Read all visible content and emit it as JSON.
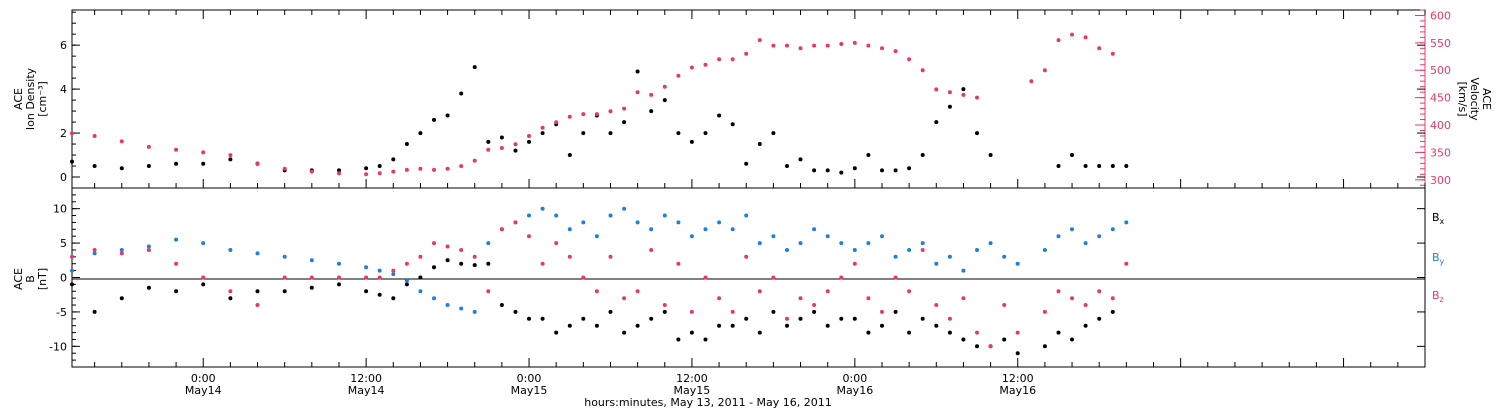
{
  "colors": {
    "black": "#000000",
    "blue": "#1f7fe0",
    "pink": "#e8386a"
  },
  "top": {
    "ylabel_lines": [
      "ACE",
      "Ion Density",
      "[cm⁻³]"
    ],
    "ylabel2_lines": [
      "ACE",
      "Velocity",
      "[km/s]"
    ],
    "left_ticks": [
      "0",
      "2",
      "4",
      "6"
    ],
    "right_ticks": [
      "300",
      "350",
      "400",
      "450",
      "500",
      "550",
      "600"
    ]
  },
  "bottom": {
    "ylabel_lines": [
      "ACE",
      "B",
      "[nT]"
    ],
    "left_ticks": [
      "-10",
      "-5",
      "0",
      "5",
      "10"
    ],
    "legend": [
      {
        "label": "Bx",
        "main": "B",
        "sub": "x",
        "color": "#000000"
      },
      {
        "label": "By",
        "main": "B",
        "sub": "y",
        "color": "#1f7fe0"
      },
      {
        "label": "Bz",
        "main": "B",
        "sub": "z",
        "color": "#e8386a"
      }
    ]
  },
  "xaxis": {
    "tick_times": [
      "0:00",
      "12:00",
      "0:00",
      "12:00",
      "0:00",
      "12:00"
    ],
    "tick_dates": [
      "May14",
      "May14",
      "May15",
      "May15",
      "May16",
      "May16"
    ],
    "title": "hours:minutes, May 13, 2011 - May 16, 2011"
  },
  "chart_data": [
    {
      "type": "scatter",
      "title": "",
      "xlabel": "hours:minutes, May 13, 2011 - May 16, 2011",
      "ylabel": "ACE Ion Density [cm⁻³]",
      "y2label": "ACE Velocity [km/s]",
      "xlim": [
        "2011-05-13 14:20",
        "2011-05-17 18:00"
      ],
      "ylim": [
        -0.5,
        7.6
      ],
      "y2lim": [
        285,
        610
      ],
      "grid": false,
      "x": [
        "2011-05-13 14:20",
        "2011-05-13 16:00",
        "2011-05-13 18:00",
        "2011-05-13 20:00",
        "2011-05-13 22:00",
        "2011-05-14 00:00",
        "2011-05-14 02:00",
        "2011-05-14 04:00",
        "2011-05-14 06:00",
        "2011-05-14 08:00",
        "2011-05-14 10:00",
        "2011-05-14 12:00",
        "2011-05-14 13:00",
        "2011-05-14 14:00",
        "2011-05-14 15:00",
        "2011-05-14 16:00",
        "2011-05-14 17:00",
        "2011-05-14 18:00",
        "2011-05-14 19:00",
        "2011-05-14 20:00",
        "2011-05-14 21:00",
        "2011-05-14 22:00",
        "2011-05-14 23:00",
        "2011-05-15 00:00",
        "2011-05-15 01:00",
        "2011-05-15 02:00",
        "2011-05-15 03:00",
        "2011-05-15 04:00",
        "2011-05-15 05:00",
        "2011-05-15 06:00",
        "2011-05-15 07:00",
        "2011-05-15 08:00",
        "2011-05-15 09:00",
        "2011-05-15 10:00",
        "2011-05-15 11:00",
        "2011-05-15 12:00",
        "2011-05-15 13:00",
        "2011-05-15 14:00",
        "2011-05-15 15:00",
        "2011-05-15 16:00",
        "2011-05-15 17:00",
        "2011-05-15 18:00",
        "2011-05-15 19:00",
        "2011-05-15 20:00",
        "2011-05-15 21:00",
        "2011-05-15 22:00",
        "2011-05-15 23:00",
        "2011-05-16 00:00",
        "2011-05-16 01:00",
        "2011-05-16 02:00",
        "2011-05-16 03:00",
        "2011-05-16 04:00",
        "2011-05-16 05:00",
        "2011-05-16 06:00",
        "2011-05-16 07:00",
        "2011-05-16 08:00",
        "2011-05-16 09:00",
        "2011-05-16 10:00",
        "2011-05-16 11:00",
        "2011-05-16 12:00",
        "2011-05-16 13:00",
        "2011-05-16 14:00",
        "2011-05-16 15:00",
        "2011-05-16 16:00",
        "2011-05-16 17:00",
        "2011-05-16 18:00",
        "2011-05-16 19:00",
        "2011-05-16 20:00",
        "2011-05-16 21:00",
        "2011-05-16 22:00"
      ],
      "series": [
        {
          "axis": "left",
          "color": "#000000",
          "values": [
            0.7,
            0.5,
            0.4,
            0.5,
            0.6,
            0.6,
            0.8,
            0.6,
            0.3,
            0.3,
            0.3,
            0.4,
            0.5,
            0.8,
            1.5,
            2.0,
            2.6,
            2.8,
            3.8,
            5.0,
            1.6,
            1.8,
            1.2,
            1.6,
            2.0,
            2.4,
            1.0,
            2.0,
            2.8,
            2.0,
            2.5,
            4.8,
            3.0,
            3.5,
            2.0,
            1.6,
            2.0,
            2.8,
            2.4,
            0.6,
            1.5,
            2.0,
            0.5,
            0.8,
            0.3,
            0.3,
            0.2,
            0.4,
            1.0,
            0.3,
            0.3,
            0.4,
            1.0,
            2.5,
            3.2,
            4.0,
            2.0,
            1.0,
            null,
            null,
            null,
            null,
            0.5,
            1.0,
            0.5,
            0.5,
            0.5,
            0.5,
            null,
            null
          ]
        },
        {
          "axis": "right",
          "color": "#e8386a",
          "values": [
            385,
            380,
            370,
            360,
            355,
            350,
            345,
            330,
            320,
            315,
            312,
            310,
            312,
            315,
            318,
            320,
            318,
            320,
            325,
            335,
            355,
            358,
            365,
            380,
            395,
            405,
            415,
            420,
            420,
            425,
            430,
            460,
            455,
            470,
            490,
            505,
            510,
            520,
            520,
            530,
            555,
            545,
            545,
            540,
            545,
            545,
            548,
            550,
            545,
            540,
            535,
            520,
            500,
            465,
            460,
            455,
            450,
            null,
            null,
            null,
            480,
            500,
            555,
            565,
            560,
            540,
            530,
            null,
            null,
            null
          ]
        }
      ]
    },
    {
      "type": "scatter",
      "title": "",
      "xlabel": "hours:minutes, May 13, 2011 - May 16, 2011",
      "ylabel": "ACE B [nT]",
      "xlim": [
        "2011-05-13 14:20",
        "2011-05-17 18:00"
      ],
      "ylim": [
        -13,
        13
      ],
      "grid": false,
      "x": [
        "2011-05-13 14:20",
        "2011-05-13 16:00",
        "2011-05-13 18:00",
        "2011-05-13 20:00",
        "2011-05-13 22:00",
        "2011-05-14 00:00",
        "2011-05-14 02:00",
        "2011-05-14 04:00",
        "2011-05-14 06:00",
        "2011-05-14 08:00",
        "2011-05-14 10:00",
        "2011-05-14 12:00",
        "2011-05-14 13:00",
        "2011-05-14 14:00",
        "2011-05-14 15:00",
        "2011-05-14 16:00",
        "2011-05-14 17:00",
        "2011-05-14 18:00",
        "2011-05-14 19:00",
        "2011-05-14 20:00",
        "2011-05-14 21:00",
        "2011-05-14 22:00",
        "2011-05-14 23:00",
        "2011-05-15 00:00",
        "2011-05-15 01:00",
        "2011-05-15 02:00",
        "2011-05-15 03:00",
        "2011-05-15 04:00",
        "2011-05-15 05:00",
        "2011-05-15 06:00",
        "2011-05-15 07:00",
        "2011-05-15 08:00",
        "2011-05-15 09:00",
        "2011-05-15 10:00",
        "2011-05-15 11:00",
        "2011-05-15 12:00",
        "2011-05-15 13:00",
        "2011-05-15 14:00",
        "2011-05-15 15:00",
        "2011-05-15 16:00",
        "2011-05-15 17:00",
        "2011-05-15 18:00",
        "2011-05-15 19:00",
        "2011-05-15 20:00",
        "2011-05-15 21:00",
        "2011-05-15 22:00",
        "2011-05-15 23:00",
        "2011-05-16 00:00",
        "2011-05-16 01:00",
        "2011-05-16 02:00",
        "2011-05-16 03:00",
        "2011-05-16 04:00",
        "2011-05-16 05:00",
        "2011-05-16 06:00",
        "2011-05-16 07:00",
        "2011-05-16 08:00",
        "2011-05-16 09:00",
        "2011-05-16 10:00",
        "2011-05-16 11:00",
        "2011-05-16 12:00",
        "2011-05-16 13:00",
        "2011-05-16 14:00",
        "2011-05-16 15:00",
        "2011-05-16 16:00",
        "2011-05-16 17:00",
        "2011-05-16 18:00",
        "2011-05-16 19:00",
        "2011-05-16 20:00",
        "2011-05-16 21:00",
        "2011-05-16 22:00"
      ],
      "series": [
        {
          "name": "Bx",
          "color": "#000000",
          "values": [
            -1,
            -5,
            -3,
            -1.5,
            -2,
            -1,
            -3,
            -2,
            -2,
            -1.5,
            -1,
            -2,
            -2.5,
            -3,
            -1,
            0,
            1.5,
            2.5,
            2,
            1.8,
            2,
            -4,
            -5,
            -6,
            -6,
            -8,
            -7,
            -6,
            -7,
            -5,
            -8,
            -7,
            -6,
            -5,
            -9,
            -8,
            -9,
            -7,
            -7,
            -6,
            -8,
            -5,
            -7,
            -6,
            -5,
            -7,
            -6,
            -6,
            -8,
            -7,
            -5,
            -8,
            -6,
            -7,
            -8,
            -9,
            -10,
            -10,
            -9,
            -11,
            null,
            -10,
            -8,
            -9,
            -7,
            -6,
            -5,
            null,
            null,
            null
          ]
        },
        {
          "name": "By",
          "color": "#1f7fe0",
          "values": [
            1,
            3.5,
            4,
            4.5,
            5.5,
            5,
            4,
            3.5,
            3,
            2.5,
            2,
            1.5,
            1,
            0.5,
            -0.5,
            -2,
            -3,
            -4,
            -4.5,
            -5,
            5,
            7,
            8,
            9,
            10,
            9,
            7,
            8,
            6,
            9,
            10,
            8,
            7,
            9,
            8,
            6,
            7,
            8,
            7,
            9,
            5,
            6,
            4,
            5,
            7,
            6,
            5,
            4,
            5,
            6,
            3,
            4,
            5,
            2,
            3,
            1,
            4,
            5,
            3,
            2,
            null,
            4,
            6,
            7,
            5,
            6,
            7,
            8,
            null,
            null
          ]
        },
        {
          "name": "Bz",
          "color": "#e8386a",
          "values": [
            3,
            4,
            3.5,
            4,
            2,
            0,
            -2,
            -4,
            0,
            0,
            0,
            0,
            0,
            1,
            2,
            3,
            5,
            4.5,
            4,
            3,
            -2,
            7,
            8,
            6,
            2,
            5,
            3,
            0,
            -2,
            3,
            -3,
            -2,
            4,
            -4,
            2,
            -5,
            0,
            -3,
            -5,
            3,
            -2,
            0,
            -6,
            -3,
            -4,
            -2,
            0,
            2,
            -3,
            -5,
            0,
            -2,
            4,
            -4,
            -6,
            -3,
            -8,
            -10,
            -4,
            -8,
            null,
            -5,
            -2,
            -3,
            -4,
            -2,
            -3,
            2,
            null,
            null
          ]
        }
      ]
    }
  ]
}
